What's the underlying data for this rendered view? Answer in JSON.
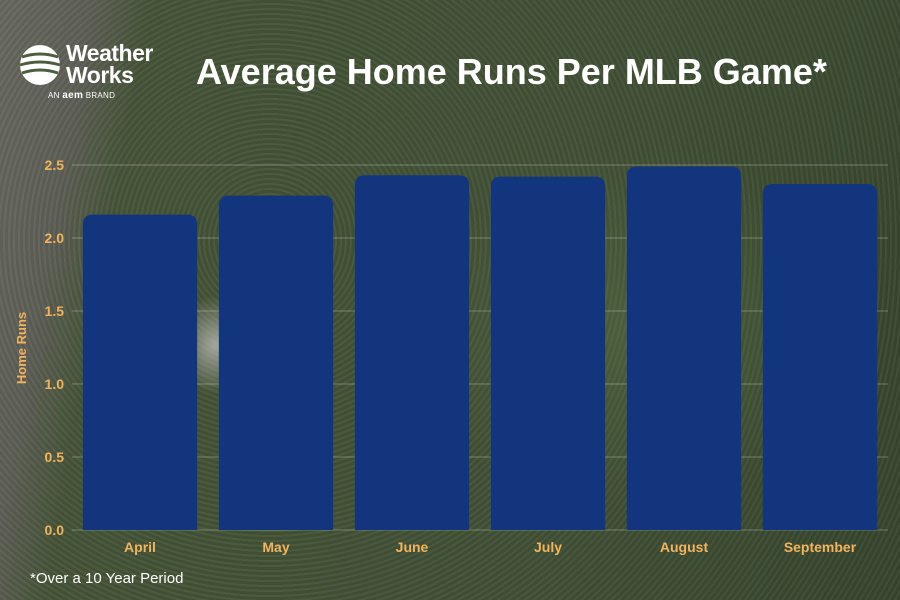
{
  "brand": {
    "line1": "Weather",
    "line2": "Works",
    "tag_prefix": "AN",
    "tag_brand": "aem",
    "tag_suffix": "BRAND"
  },
  "footnote": "*Over a 10 Year Period",
  "colors": {
    "bar": "#13357d",
    "label": "#f2b35e",
    "title": "#ffffff"
  },
  "chart_data": {
    "type": "bar",
    "title": "Average Home Runs Per MLB Game*",
    "xlabel": "",
    "ylabel": "Home Runs",
    "categories": [
      "April",
      "May",
      "June",
      "July",
      "August",
      "September"
    ],
    "values": [
      2.16,
      2.29,
      2.43,
      2.42,
      2.49,
      2.37
    ],
    "ylim": [
      0,
      2.5
    ],
    "yticks": [
      "0.0",
      "0.5",
      "1.0",
      "1.5",
      "2.0",
      "2.5"
    ],
    "grid": true,
    "legend": "none"
  }
}
